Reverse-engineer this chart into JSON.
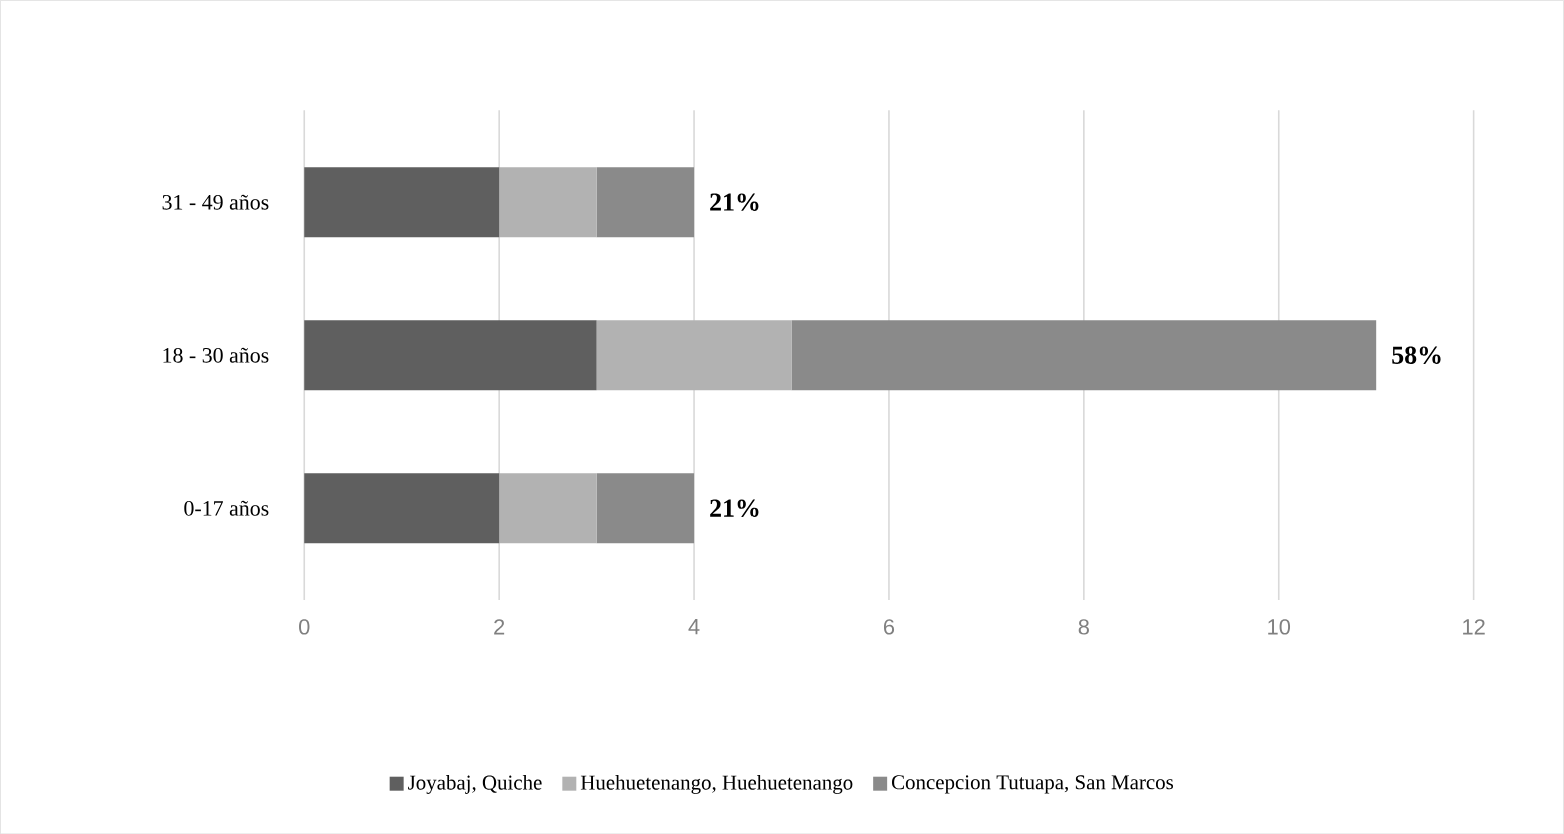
{
  "chart_data": {
    "type": "bar",
    "orientation": "horizontal",
    "stacked": true,
    "categories": [
      "31 - 49 años",
      "18 -  30 años",
      "0-17 años"
    ],
    "series": [
      {
        "name": "Joyabaj, Quiche",
        "color": "#5f5f5f",
        "values": [
          2,
          3,
          2
        ]
      },
      {
        "name": "Huehuetenango, Huehuetenango",
        "color": "#b2b2b2",
        "values": [
          1,
          2,
          1
        ]
      },
      {
        "name": "Concepcion Tutuapa, San Marcos",
        "color": "#8a8a8a",
        "values": [
          1,
          6,
          1
        ]
      }
    ],
    "annotations": [
      "21%",
      "58%",
      "21%"
    ],
    "xlim": [
      0,
      12
    ],
    "xticks": [
      0,
      2,
      4,
      6,
      8,
      10,
      12
    ],
    "grid": "x",
    "legend": "bottom"
  }
}
